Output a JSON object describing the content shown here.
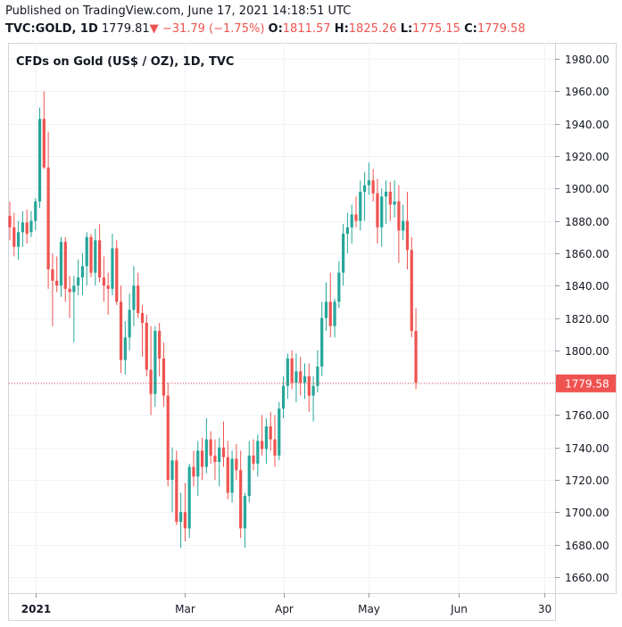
{
  "header": {
    "published": "Published on TradingView.com, June 17, 2021 14:18:51 UTC",
    "symbol": "TVC:GOLD, 1D",
    "last": "1779.81",
    "change": "−31.79 (−1.75%)",
    "o_label": "O:",
    "o_value": "1811.57",
    "h_label": "H:",
    "h_value": "1825.26",
    "l_label": "L:",
    "l_value": "1775.15",
    "c_label": "C:",
    "c_value": "1779.58"
  },
  "colors": {
    "up": "#26a69a",
    "down": "#ef5350",
    "grid": "#f0f3fa",
    "axis": "#9598a1",
    "text": "#131722"
  },
  "chart_data": {
    "type": "candlestick",
    "title": "CFDs on Gold (US$ / OZ), 1D, TVC",
    "ylim": [
      1650,
      1990
    ],
    "y_ticks": [
      1660,
      1680,
      1700,
      1720,
      1740,
      1760,
      1780,
      1800,
      1820,
      1840,
      1860,
      1880,
      1900,
      1920,
      1940,
      1960,
      1980
    ],
    "x_ticks": [
      {
        "label": "2021",
        "index": 6,
        "bold": true
      },
      {
        "label": "Mar",
        "index": 41
      },
      {
        "label": "Apr",
        "index": 64
      },
      {
        "label": "May",
        "index": 84
      },
      {
        "label": "Jun",
        "index": 105
      },
      {
        "label": "30",
        "index": 125
      }
    ],
    "last_price": 1779.58,
    "last_price_label": "1779.58",
    "candles": [
      [
        1883,
        1892,
        1868,
        1876
      ],
      [
        1876,
        1885,
        1858,
        1864
      ],
      [
        1864,
        1880,
        1856,
        1873
      ],
      [
        1873,
        1886,
        1864,
        1879
      ],
      [
        1879,
        1887,
        1866,
        1872
      ],
      [
        1873,
        1886,
        1870,
        1880
      ],
      [
        1880,
        1894,
        1874,
        1892
      ],
      [
        1892,
        1950,
        1888,
        1943
      ],
      [
        1943,
        1960,
        1912,
        1913
      ],
      [
        1913,
        1935,
        1838,
        1850
      ],
      [
        1850,
        1860,
        1815,
        1843
      ],
      [
        1843,
        1858,
        1836,
        1840
      ],
      [
        1840,
        1870,
        1833,
        1867
      ],
      [
        1867,
        1870,
        1830,
        1838
      ],
      [
        1838,
        1846,
        1820,
        1836
      ],
      [
        1836,
        1846,
        1805,
        1840
      ],
      [
        1840,
        1856,
        1834,
        1845
      ],
      [
        1845,
        1860,
        1834,
        1852
      ],
      [
        1852,
        1873,
        1840,
        1870
      ],
      [
        1870,
        1872,
        1845,
        1848
      ],
      [
        1848,
        1875,
        1840,
        1868
      ],
      [
        1868,
        1878,
        1842,
        1845
      ],
      [
        1845,
        1858,
        1830,
        1840
      ],
      [
        1840,
        1848,
        1822,
        1838
      ],
      [
        1838,
        1872,
        1834,
        1863
      ],
      [
        1863,
        1868,
        1828,
        1830
      ],
      [
        1830,
        1840,
        1786,
        1794
      ],
      [
        1794,
        1818,
        1785,
        1808
      ],
      [
        1808,
        1835,
        1800,
        1825
      ],
      [
        1825,
        1852,
        1815,
        1840
      ],
      [
        1840,
        1848,
        1820,
        1823
      ],
      [
        1823,
        1828,
        1796,
        1817
      ],
      [
        1817,
        1822,
        1784,
        1788
      ],
      [
        1788,
        1815,
        1760,
        1773
      ],
      [
        1773,
        1815,
        1765,
        1812
      ],
      [
        1812,
        1817,
        1784,
        1795
      ],
      [
        1795,
        1805,
        1765,
        1772
      ],
      [
        1772,
        1780,
        1716,
        1720
      ],
      [
        1720,
        1740,
        1700,
        1732
      ],
      [
        1732,
        1738,
        1692,
        1694
      ],
      [
        1694,
        1712,
        1678,
        1700
      ],
      [
        1700,
        1718,
        1682,
        1690
      ],
      [
        1690,
        1730,
        1684,
        1728
      ],
      [
        1728,
        1738,
        1716,
        1722
      ],
      [
        1722,
        1744,
        1710,
        1738
      ],
      [
        1738,
        1746,
        1720,
        1728
      ],
      [
        1728,
        1758,
        1724,
        1745
      ],
      [
        1745,
        1750,
        1730,
        1735
      ],
      [
        1735,
        1745,
        1720,
        1731
      ],
      [
        1731,
        1746,
        1716,
        1740
      ],
      [
        1740,
        1756,
        1728,
        1734
      ],
      [
        1734,
        1744,
        1708,
        1712
      ],
      [
        1712,
        1738,
        1706,
        1733
      ],
      [
        1733,
        1742,
        1720,
        1726
      ],
      [
        1726,
        1738,
        1684,
        1690
      ],
      [
        1690,
        1712,
        1678,
        1710
      ],
      [
        1710,
        1744,
        1706,
        1735
      ],
      [
        1735,
        1745,
        1726,
        1730
      ],
      [
        1730,
        1748,
        1722,
        1744
      ],
      [
        1744,
        1760,
        1735,
        1739
      ],
      [
        1739,
        1758,
        1730,
        1753
      ],
      [
        1753,
        1762,
        1738,
        1745
      ],
      [
        1745,
        1760,
        1728,
        1735
      ],
      [
        1735,
        1768,
        1732,
        1764
      ],
      [
        1764,
        1784,
        1758,
        1778
      ],
      [
        1778,
        1798,
        1770,
        1795
      ],
      [
        1795,
        1800,
        1776,
        1780
      ],
      [
        1780,
        1798,
        1768,
        1787
      ],
      [
        1787,
        1796,
        1772,
        1780
      ],
      [
        1780,
        1792,
        1770,
        1784
      ],
      [
        1784,
        1792,
        1762,
        1772
      ],
      [
        1772,
        1784,
        1756,
        1778
      ],
      [
        1778,
        1800,
        1774,
        1790
      ],
      [
        1790,
        1830,
        1784,
        1820
      ],
      [
        1820,
        1842,
        1812,
        1830
      ],
      [
        1830,
        1848,
        1808,
        1815
      ],
      [
        1815,
        1832,
        1808,
        1830
      ],
      [
        1830,
        1855,
        1826,
        1848
      ],
      [
        1848,
        1878,
        1840,
        1872
      ],
      [
        1872,
        1885,
        1860,
        1876
      ],
      [
        1876,
        1890,
        1866,
        1884
      ],
      [
        1884,
        1895,
        1876,
        1880
      ],
      [
        1880,
        1905,
        1874,
        1898
      ],
      [
        1898,
        1910,
        1880,
        1902
      ],
      [
        1902,
        1916,
        1896,
        1905
      ],
      [
        1905,
        1912,
        1892,
        1897
      ],
      [
        1897,
        1906,
        1866,
        1876
      ],
      [
        1876,
        1900,
        1864,
        1895
      ],
      [
        1895,
        1905,
        1878,
        1898
      ],
      [
        1898,
        1904,
        1880,
        1890
      ],
      [
        1890,
        1905,
        1882,
        1892
      ],
      [
        1892,
        1902,
        1854,
        1874
      ],
      [
        1874,
        1890,
        1868,
        1880
      ],
      [
        1880,
        1898,
        1850,
        1862
      ],
      [
        1862,
        1870,
        1808,
        1812
      ],
      [
        1812,
        1826,
        1776,
        1780
      ]
    ]
  }
}
